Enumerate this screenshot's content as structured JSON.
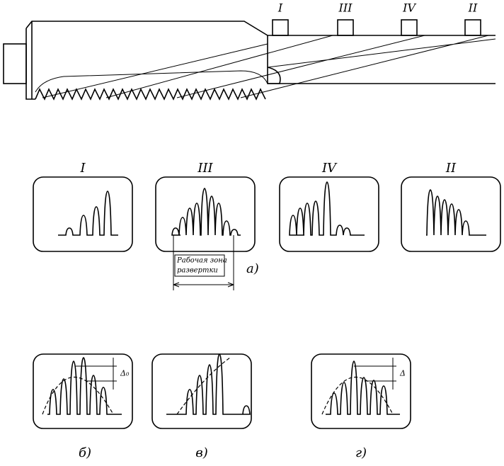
{
  "tool": {
    "markers": [
      "I",
      "III",
      "IV",
      "II"
    ]
  },
  "panels_a": [
    {
      "label": "I"
    },
    {
      "label": "III"
    },
    {
      "label": "IV"
    },
    {
      "label": "II"
    }
  ],
  "scan_zone_label": [
    "Рабочая зона",
    "развертки"
  ],
  "caption_a": "а)",
  "panels_b": [
    {
      "caption": "б)",
      "delta_label": "Δ₀"
    },
    {
      "caption": "в)"
    },
    {
      "caption": "г)",
      "delta_label": "Δ"
    }
  ]
}
